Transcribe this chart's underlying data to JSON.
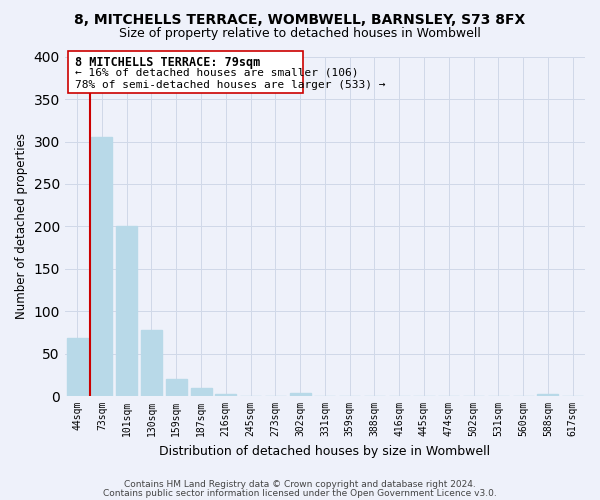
{
  "title": "8, MITCHELLS TERRACE, WOMBWELL, BARNSLEY, S73 8FX",
  "subtitle": "Size of property relative to detached houses in Wombwell",
  "xlabel": "Distribution of detached houses by size in Wombwell",
  "ylabel": "Number of detached properties",
  "bar_labels": [
    "44sqm",
    "73sqm",
    "101sqm",
    "130sqm",
    "159sqm",
    "187sqm",
    "216sqm",
    "245sqm",
    "273sqm",
    "302sqm",
    "331sqm",
    "359sqm",
    "388sqm",
    "416sqm",
    "445sqm",
    "474sqm",
    "502sqm",
    "531sqm",
    "560sqm",
    "588sqm",
    "617sqm"
  ],
  "bar_values": [
    68,
    305,
    200,
    78,
    20,
    10,
    2,
    0,
    0,
    4,
    0,
    0,
    0,
    0,
    0,
    0,
    0,
    0,
    0,
    2,
    0
  ],
  "bar_color": "#b8d9e8",
  "property_line_color": "#cc0000",
  "property_line_x": 0.5,
  "ylim": [
    0,
    400
  ],
  "yticks": [
    0,
    50,
    100,
    150,
    200,
    250,
    300,
    350,
    400
  ],
  "annotation_title": "8 MITCHELLS TERRACE: 79sqm",
  "annotation_line1": "← 16% of detached houses are smaller (106)",
  "annotation_line2": "78% of semi-detached houses are larger (533) →",
  "footer_line1": "Contains HM Land Registry data © Crown copyright and database right 2024.",
  "footer_line2": "Contains public sector information licensed under the Open Government Licence v3.0.",
  "background_color": "#eef1fa",
  "grid_color": "#d0d8e8"
}
